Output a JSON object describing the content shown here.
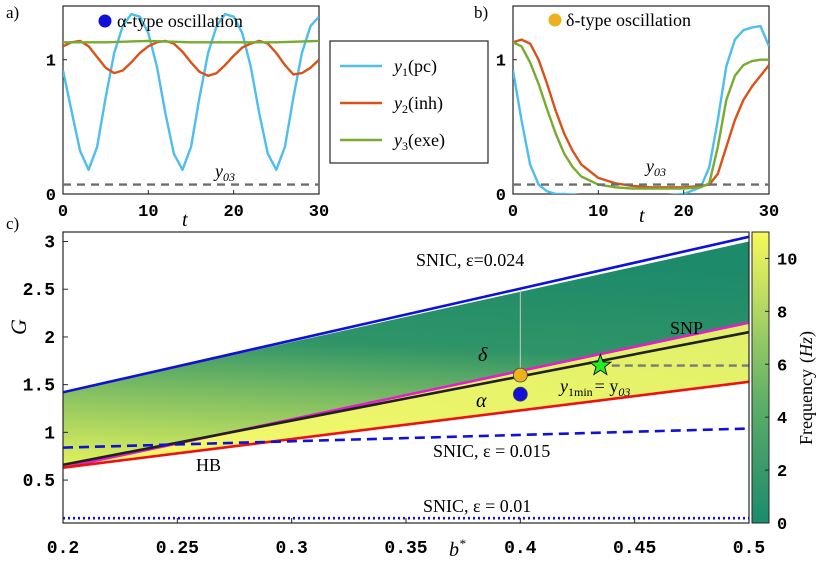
{
  "chart_data": [
    {
      "id": "a",
      "panel_label": "a)",
      "type": "line",
      "title": "α-type oscillation",
      "marker_color": "#1010d8",
      "xlabel": "t",
      "xlim": [
        0,
        30
      ],
      "ylim": [
        0,
        1.4
      ],
      "xticks": [
        0,
        10,
        20,
        30
      ],
      "yticks": [
        0,
        1
      ],
      "reference_line": {
        "label": "y03",
        "y": 0.07
      },
      "series": [
        {
          "name": "y1(pc)",
          "color": "#4dbeee",
          "x": [
            0,
            1,
            2,
            3,
            4,
            5,
            6,
            7,
            8,
            9,
            10,
            11,
            12,
            13,
            14,
            15,
            16,
            17,
            18,
            19,
            20,
            21,
            22,
            23,
            24,
            25,
            26,
            27,
            28,
            29,
            30
          ],
          "y": [
            0.92,
            0.62,
            0.32,
            0.18,
            0.35,
            0.72,
            1.05,
            1.25,
            1.34,
            1.32,
            1.2,
            0.95,
            0.6,
            0.3,
            0.18,
            0.35,
            0.72,
            1.05,
            1.25,
            1.34,
            1.32,
            1.2,
            0.95,
            0.6,
            0.3,
            0.18,
            0.35,
            0.72,
            1.05,
            1.25,
            1.32
          ]
        },
        {
          "name": "y2(inh)",
          "color": "#d95319",
          "x": [
            0,
            1,
            2,
            3,
            4,
            5,
            6,
            7,
            8,
            9,
            10,
            11,
            12,
            13,
            14,
            15,
            16,
            17,
            18,
            19,
            20,
            21,
            22,
            23,
            24,
            25,
            26,
            27,
            28,
            29,
            30
          ],
          "y": [
            1.1,
            1.13,
            1.14,
            1.1,
            1.02,
            0.94,
            0.9,
            0.92,
            0.98,
            1.05,
            1.1,
            1.13,
            1.14,
            1.12,
            1.06,
            0.98,
            0.91,
            0.88,
            0.9,
            0.96,
            1.03,
            1.09,
            1.12,
            1.14,
            1.12,
            1.05,
            0.96,
            0.89,
            0.9,
            0.94,
            1.0
          ]
        },
        {
          "name": "y3(exe)",
          "color": "#77ac30",
          "x": [
            0,
            5,
            10,
            15,
            20,
            25,
            30
          ],
          "y": [
            1.13,
            1.13,
            1.14,
            1.13,
            1.13,
            1.13,
            1.14
          ]
        }
      ]
    },
    {
      "id": "b",
      "panel_label": "b)",
      "type": "line",
      "title": "δ-type oscillation",
      "marker_color": "#edb120",
      "xlabel": "t",
      "xlim": [
        0,
        30
      ],
      "ylim": [
        0,
        1.4
      ],
      "xticks": [
        0,
        10,
        20,
        30
      ],
      "yticks": [
        0,
        1
      ],
      "reference_line": {
        "label": "y03",
        "y": 0.07
      },
      "series": [
        {
          "name": "y1(pc)",
          "color": "#4dbeee",
          "x": [
            0,
            1,
            2,
            3,
            4,
            5,
            6,
            8,
            10,
            12,
            14,
            16,
            18,
            20,
            22,
            23,
            24,
            25,
            26,
            27,
            28,
            29,
            30
          ],
          "y": [
            0.92,
            0.55,
            0.22,
            0.07,
            0.02,
            0.0,
            0.0,
            -0.01,
            -0.01,
            -0.01,
            -0.01,
            -0.01,
            -0.01,
            0.0,
            0.05,
            0.2,
            0.55,
            0.95,
            1.15,
            1.22,
            1.24,
            1.25,
            1.1
          ]
        },
        {
          "name": "y2(inh)",
          "color": "#d95319",
          "x": [
            0,
            1,
            2,
            3,
            4,
            5,
            6,
            7,
            8,
            10,
            12,
            14,
            16,
            18,
            20,
            22,
            23,
            24,
            25,
            26,
            27,
            28,
            29,
            30
          ],
          "y": [
            1.13,
            1.15,
            1.12,
            1.0,
            0.82,
            0.62,
            0.45,
            0.32,
            0.22,
            0.12,
            0.08,
            0.06,
            0.05,
            0.05,
            0.05,
            0.06,
            0.07,
            0.15,
            0.35,
            0.55,
            0.7,
            0.8,
            0.88,
            0.96
          ]
        },
        {
          "name": "y3(exe)",
          "color": "#77ac30",
          "x": [
            0,
            1,
            2,
            3,
            4,
            5,
            6,
            7,
            8,
            10,
            12,
            14,
            16,
            18,
            20,
            22,
            23,
            24,
            25,
            26,
            27,
            28,
            29,
            30
          ],
          "y": [
            1.13,
            1.1,
            0.98,
            0.82,
            0.63,
            0.45,
            0.3,
            0.2,
            0.13,
            0.07,
            0.05,
            0.04,
            0.04,
            0.04,
            0.04,
            0.05,
            0.08,
            0.35,
            0.7,
            0.88,
            0.96,
            0.99,
            1.0,
            1.0
          ]
        }
      ]
    },
    {
      "id": "c",
      "panel_label": "c)",
      "type": "heatmap",
      "xlabel": "b*",
      "ylabel": "G",
      "xlim": [
        0.2,
        0.5
      ],
      "ylim": [
        0.05,
        3.1
      ],
      "xticks": [
        0.2,
        0.25,
        0.3,
        0.35,
        0.4,
        0.45,
        0.5
      ],
      "yticks": [
        0.5,
        1,
        1.5,
        2,
        2.5,
        3
      ],
      "colorbar": {
        "label": "Frequency (Hz)",
        "ticks": [
          0,
          2,
          4,
          6,
          8,
          10
        ],
        "range": [
          0,
          11
        ]
      },
      "curves": [
        {
          "name": "SNIC, ε=0.024",
          "color": "#1010d8",
          "style": "solid",
          "x": [
            0.2,
            0.5
          ],
          "y": [
            1.42,
            3.05
          ]
        },
        {
          "name": "SNP",
          "color": "#e020c8",
          "style": "solid",
          "x": [
            0.2,
            0.5
          ],
          "y": [
            0.63,
            2.15
          ]
        },
        {
          "name": "black",
          "color": "#202020",
          "style": "solid",
          "x": [
            0.2,
            0.5
          ],
          "y": [
            0.66,
            2.05
          ]
        },
        {
          "name": "HB",
          "color": "#ee1111",
          "style": "solid",
          "x": [
            0.2,
            0.5
          ],
          "y": [
            0.63,
            1.53
          ]
        },
        {
          "name": "SNIC, ε = 0.015",
          "color": "#1010d8",
          "style": "dashed",
          "x": [
            0.2,
            0.5
          ],
          "y": [
            0.84,
            1.04
          ]
        },
        {
          "name": "SNIC, ε = 0.01",
          "color": "#1010d8",
          "style": "dotted",
          "x": [
            0.2,
            0.5
          ],
          "y": [
            0.1,
            0.1
          ]
        }
      ],
      "reference": {
        "label": "y1min = y03",
        "y": 1.7,
        "x_from": 0.44,
        "x_to": 0.5
      },
      "vertical_line_x": 0.4,
      "points": [
        {
          "label": "δ",
          "x": 0.4,
          "y": 1.6,
          "color": "#edb120"
        },
        {
          "label": "α",
          "x": 0.4,
          "y": 1.4,
          "color": "#1010d8"
        },
        {
          "label": "star",
          "x": 0.435,
          "y": 1.7,
          "color": "#22ee22"
        }
      ],
      "annotations": [
        "SNIC, ε=0.024",
        "SNP",
        "HB",
        "SNIC, ε = 0.015",
        "SNIC, ε = 0.01",
        "y1min = y03",
        "δ",
        "α"
      ]
    }
  ],
  "legend": {
    "entries": [
      {
        "base": "y",
        "sub": "1",
        "tail": "(pc)",
        "color": "#4dbeee"
      },
      {
        "base": "y",
        "sub": "2",
        "tail": "(inh)",
        "color": "#d95319"
      },
      {
        "base": "y",
        "sub": "3",
        "tail": "(exe)",
        "color": "#77ac30"
      }
    ]
  },
  "labels": {
    "y03_base": "y",
    "y03_sub": "03",
    "t": "t",
    "b_star": "b",
    "star_sup": "*",
    "G": "G",
    "snic_024": "SNIC, ε=0.024",
    "snp": "SNP",
    "hb": "HB",
    "snic_015": "SNIC, ε = 0.015",
    "snic_01": "SNIC, ε = 0.01",
    "delta": "δ",
    "alpha": "α",
    "y1min_base": "y",
    "y1min_sub": "1min",
    "y1min_rest": "= y",
    "y1min_sub2": "03",
    "colorbar_label": "Frequency",
    "colorbar_unit": "Hz"
  }
}
